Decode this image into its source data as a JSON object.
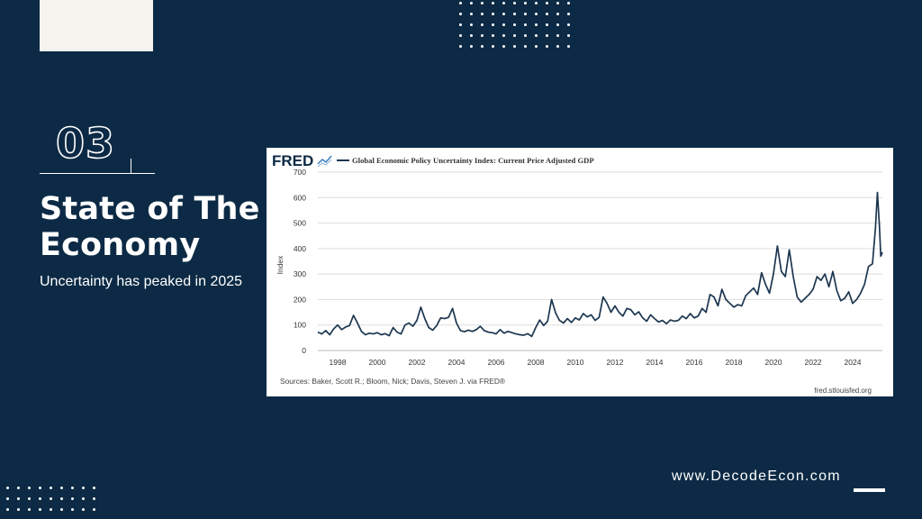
{
  "slide": {
    "section_number": "03",
    "title": "State of The Economy",
    "subtitle": "Uncertainty has peaked in 2025",
    "website": "www.DecodeEcon.com"
  },
  "colors": {
    "background": "#0c2a45",
    "line": "#1c3650",
    "fred_icon": "#3a7fc1"
  },
  "chart_data": {
    "type": "line",
    "brand": "FRED",
    "title": "Global Economic Policy Uncertainty Index: Current Price Adjusted GDP",
    "ylabel": "Index",
    "xlabel": "",
    "ylim": [
      0,
      700
    ],
    "yticks": [
      0,
      100,
      200,
      300,
      400,
      500,
      600,
      700
    ],
    "xlim": [
      1997.0,
      2025.5
    ],
    "xticks": [
      "1998",
      "2000",
      "2002",
      "2004",
      "2006",
      "2008",
      "2010",
      "2012",
      "2014",
      "2016",
      "2018",
      "2020",
      "2022",
      "2024"
    ],
    "source": "Sources: Baker, Scott R.; Bloom, Nick; Davis, Steven J. via FRED®",
    "site": "fred.stlouisfed.org",
    "series": [
      {
        "name": "Global Economic Policy Uncertainty Index: Current Price Adjusted GDP",
        "points": [
          [
            1997.0,
            72
          ],
          [
            1997.2,
            65
          ],
          [
            1997.4,
            78
          ],
          [
            1997.6,
            62
          ],
          [
            1997.8,
            85
          ],
          [
            1998.0,
            100
          ],
          [
            1998.2,
            82
          ],
          [
            1998.4,
            92
          ],
          [
            1998.6,
            98
          ],
          [
            1998.8,
            138
          ],
          [
            1999.0,
            108
          ],
          [
            1999.2,
            75
          ],
          [
            1999.4,
            62
          ],
          [
            1999.6,
            68
          ],
          [
            1999.8,
            65
          ],
          [
            2000.0,
            70
          ],
          [
            2000.2,
            62
          ],
          [
            2000.4,
            66
          ],
          [
            2000.6,
            58
          ],
          [
            2000.8,
            90
          ],
          [
            2001.0,
            72
          ],
          [
            2001.2,
            65
          ],
          [
            2001.4,
            100
          ],
          [
            2001.6,
            108
          ],
          [
            2001.8,
            95
          ],
          [
            2002.0,
            118
          ],
          [
            2002.2,
            170
          ],
          [
            2002.4,
            125
          ],
          [
            2002.6,
            90
          ],
          [
            2002.8,
            80
          ],
          [
            2003.0,
            98
          ],
          [
            2003.2,
            128
          ],
          [
            2003.4,
            125
          ],
          [
            2003.6,
            130
          ],
          [
            2003.8,
            165
          ],
          [
            2004.0,
            108
          ],
          [
            2004.2,
            78
          ],
          [
            2004.4,
            74
          ],
          [
            2004.6,
            80
          ],
          [
            2004.8,
            75
          ],
          [
            2005.0,
            82
          ],
          [
            2005.2,
            95
          ],
          [
            2005.4,
            78
          ],
          [
            2005.6,
            72
          ],
          [
            2005.8,
            70
          ],
          [
            2006.0,
            65
          ],
          [
            2006.2,
            82
          ],
          [
            2006.4,
            68
          ],
          [
            2006.6,
            75
          ],
          [
            2006.8,
            70
          ],
          [
            2007.0,
            65
          ],
          [
            2007.2,
            62
          ],
          [
            2007.4,
            60
          ],
          [
            2007.6,
            66
          ],
          [
            2007.8,
            55
          ],
          [
            2008.0,
            90
          ],
          [
            2008.2,
            120
          ],
          [
            2008.4,
            98
          ],
          [
            2008.6,
            115
          ],
          [
            2008.8,
            200
          ],
          [
            2009.0,
            148
          ],
          [
            2009.2,
            118
          ],
          [
            2009.4,
            108
          ],
          [
            2009.6,
            125
          ],
          [
            2009.8,
            110
          ],
          [
            2010.0,
            128
          ],
          [
            2010.2,
            120
          ],
          [
            2010.4,
            145
          ],
          [
            2010.6,
            132
          ],
          [
            2010.8,
            140
          ],
          [
            2011.0,
            118
          ],
          [
            2011.2,
            130
          ],
          [
            2011.4,
            210
          ],
          [
            2011.6,
            185
          ],
          [
            2011.8,
            150
          ],
          [
            2012.0,
            175
          ],
          [
            2012.2,
            150
          ],
          [
            2012.4,
            135
          ],
          [
            2012.6,
            165
          ],
          [
            2012.8,
            160
          ],
          [
            2013.0,
            140
          ],
          [
            2013.2,
            152
          ],
          [
            2013.4,
            128
          ],
          [
            2013.6,
            115
          ],
          [
            2013.8,
            140
          ],
          [
            2014.0,
            125
          ],
          [
            2014.2,
            112
          ],
          [
            2014.4,
            118
          ],
          [
            2014.6,
            105
          ],
          [
            2014.8,
            120
          ],
          [
            2015.0,
            115
          ],
          [
            2015.2,
            118
          ],
          [
            2015.4,
            135
          ],
          [
            2015.6,
            125
          ],
          [
            2015.8,
            145
          ],
          [
            2016.0,
            128
          ],
          [
            2016.2,
            135
          ],
          [
            2016.4,
            165
          ],
          [
            2016.6,
            150
          ],
          [
            2016.8,
            220
          ],
          [
            2017.0,
            210
          ],
          [
            2017.2,
            175
          ],
          [
            2017.4,
            240
          ],
          [
            2017.6,
            200
          ],
          [
            2017.8,
            185
          ],
          [
            2018.0,
            170
          ],
          [
            2018.2,
            180
          ],
          [
            2018.4,
            175
          ],
          [
            2018.6,
            215
          ],
          [
            2018.8,
            230
          ],
          [
            2019.0,
            245
          ],
          [
            2019.2,
            220
          ],
          [
            2019.4,
            305
          ],
          [
            2019.6,
            260
          ],
          [
            2019.8,
            225
          ],
          [
            2020.0,
            300
          ],
          [
            2020.2,
            410
          ],
          [
            2020.4,
            310
          ],
          [
            2020.6,
            290
          ],
          [
            2020.8,
            395
          ],
          [
            2021.0,
            290
          ],
          [
            2021.2,
            210
          ],
          [
            2021.4,
            190
          ],
          [
            2021.6,
            205
          ],
          [
            2021.8,
            220
          ],
          [
            2022.0,
            240
          ],
          [
            2022.2,
            290
          ],
          [
            2022.4,
            275
          ],
          [
            2022.6,
            300
          ],
          [
            2022.8,
            250
          ],
          [
            2023.0,
            310
          ],
          [
            2023.2,
            235
          ],
          [
            2023.4,
            195
          ],
          [
            2023.6,
            205
          ],
          [
            2023.8,
            230
          ],
          [
            2024.0,
            185
          ],
          [
            2024.2,
            200
          ],
          [
            2024.4,
            225
          ],
          [
            2024.6,
            260
          ],
          [
            2024.8,
            330
          ],
          [
            2025.0,
            340
          ],
          [
            2025.15,
            480
          ],
          [
            2025.25,
            620
          ],
          [
            2025.35,
            490
          ],
          [
            2025.42,
            370
          ],
          [
            2025.5,
            385
          ]
        ]
      }
    ]
  }
}
